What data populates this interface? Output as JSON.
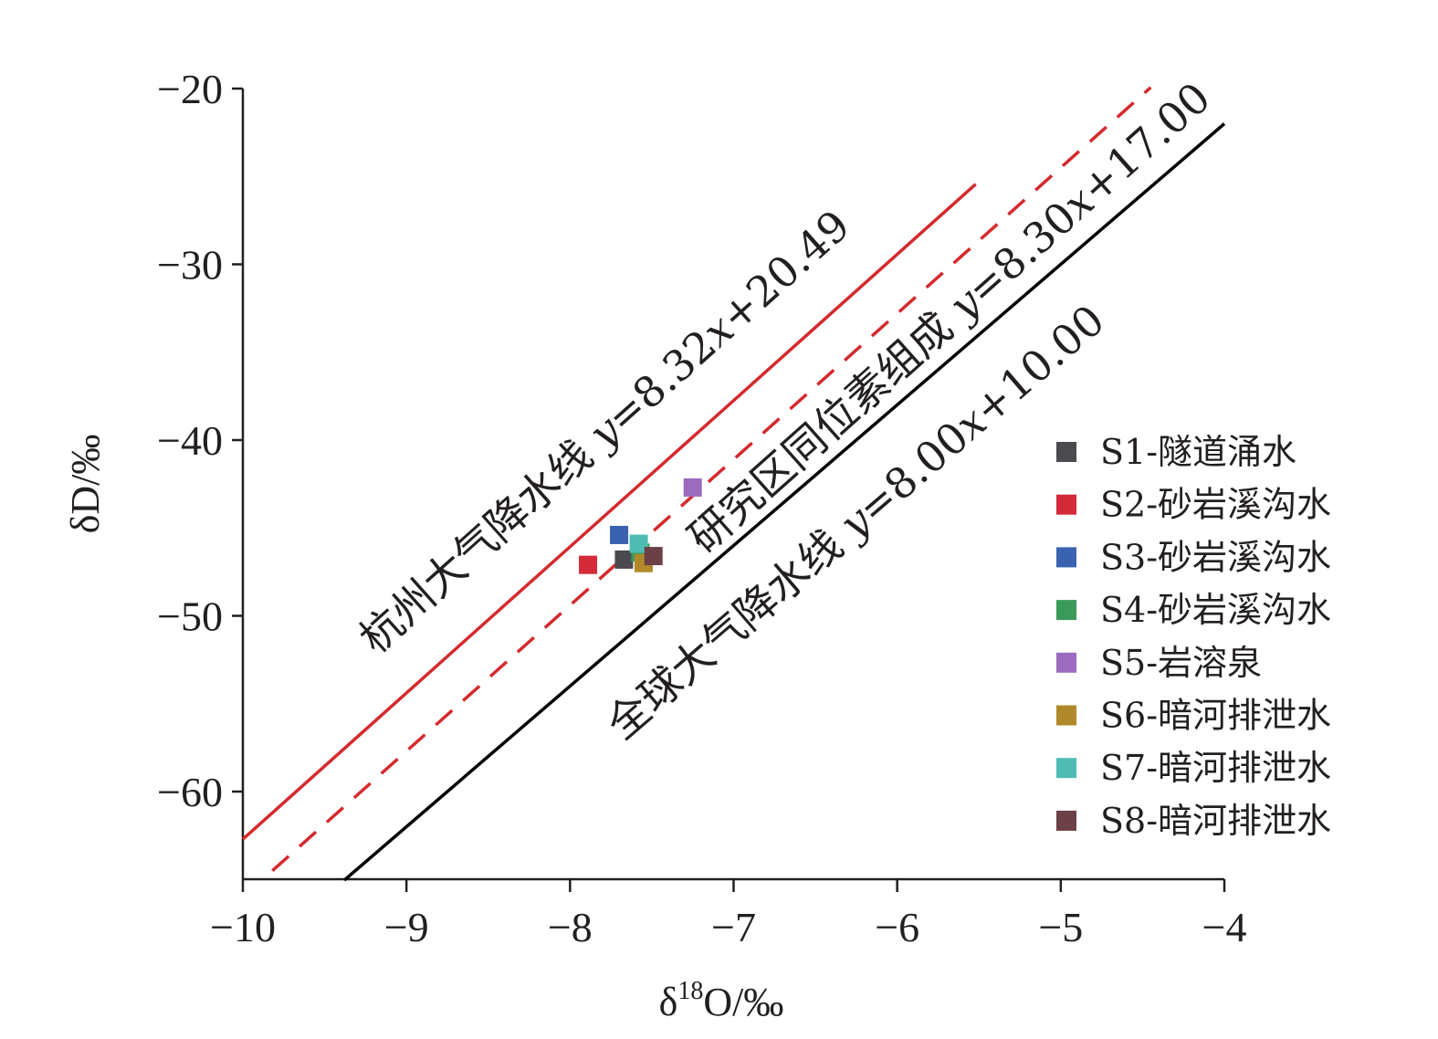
{
  "chart_data": {
    "type": "scatter",
    "xlabel": "δ18O/‰",
    "ylabel": "δD/‰",
    "xlim": [
      -10,
      -4
    ],
    "ylim": [
      -65,
      -20
    ],
    "x_ticks": [
      -10,
      -9,
      -8,
      -7,
      -6,
      -5,
      -4
    ],
    "x_tick_labels": [
      "−10",
      "−9",
      "−8",
      "−7",
      "−6",
      "−5",
      "−4"
    ],
    "y_ticks": [
      -60,
      -50,
      -40,
      -30,
      -20
    ],
    "y_tick_labels": [
      "−60",
      "−50",
      "−40",
      "−30",
      "−20"
    ],
    "grid": false,
    "legend_position": "right",
    "lines": [
      {
        "slope": 8.32,
        "intercept": 20.49,
        "x_range": [
          -10,
          -5.52
        ],
        "style": "solid",
        "color": "#d42a2f",
        "label": {
          "prefix": "杭州大气降水线 ",
          "var": "y",
          "mid": "=8.32",
          "var2": "x",
          "suffix": "+20.49"
        }
      },
      {
        "slope": 8.3,
        "intercept": 17.0,
        "x_range": [
          -9.82,
          -4.45
        ],
        "style": "dashed",
        "color": "#d42a2f",
        "label": {
          "prefix": "研究区同位素组成 ",
          "var": "y",
          "mid": "=8.30",
          "var2": "x",
          "suffix": "+17.00"
        }
      },
      {
        "slope": 8.0,
        "intercept": 10.0,
        "x_range": [
          -9.38,
          -4.0
        ],
        "style": "solid",
        "color": "#000000",
        "label": {
          "prefix": "全球大气降水线 ",
          "var": "y",
          "mid": "=8.00",
          "var2": "x",
          "suffix": "+10.00"
        }
      }
    ],
    "series": [
      {
        "name": "S1-隧道涌水",
        "color": "#4a4a4f",
        "x": -7.67,
        "y": -46.8
      },
      {
        "name": "S2-砂岩溪沟水",
        "color": "#d42a3a",
        "x": -7.89,
        "y": -47.1
      },
      {
        "name": "S3-砂岩溪沟水",
        "color": "#3a62b0",
        "x": -7.7,
        "y": -45.4
      },
      {
        "name": "S4-砂岩溪沟水",
        "color": "#3a9a5a",
        "x": -7.57,
        "y": -46.4
      },
      {
        "name": "S5-岩溶泉",
        "color": "#9b6bbf",
        "x": -7.25,
        "y": -42.7
      },
      {
        "name": "S6-暗河排泄水",
        "color": "#b08a2a",
        "x": -7.55,
        "y": -47.0
      },
      {
        "name": "S7-暗河排泄水",
        "color": "#4fbcb4",
        "x": -7.58,
        "y": -45.9
      },
      {
        "name": "S8-暗河排泄水",
        "color": "#6b4047",
        "x": -7.49,
        "y": -46.6
      }
    ]
  }
}
